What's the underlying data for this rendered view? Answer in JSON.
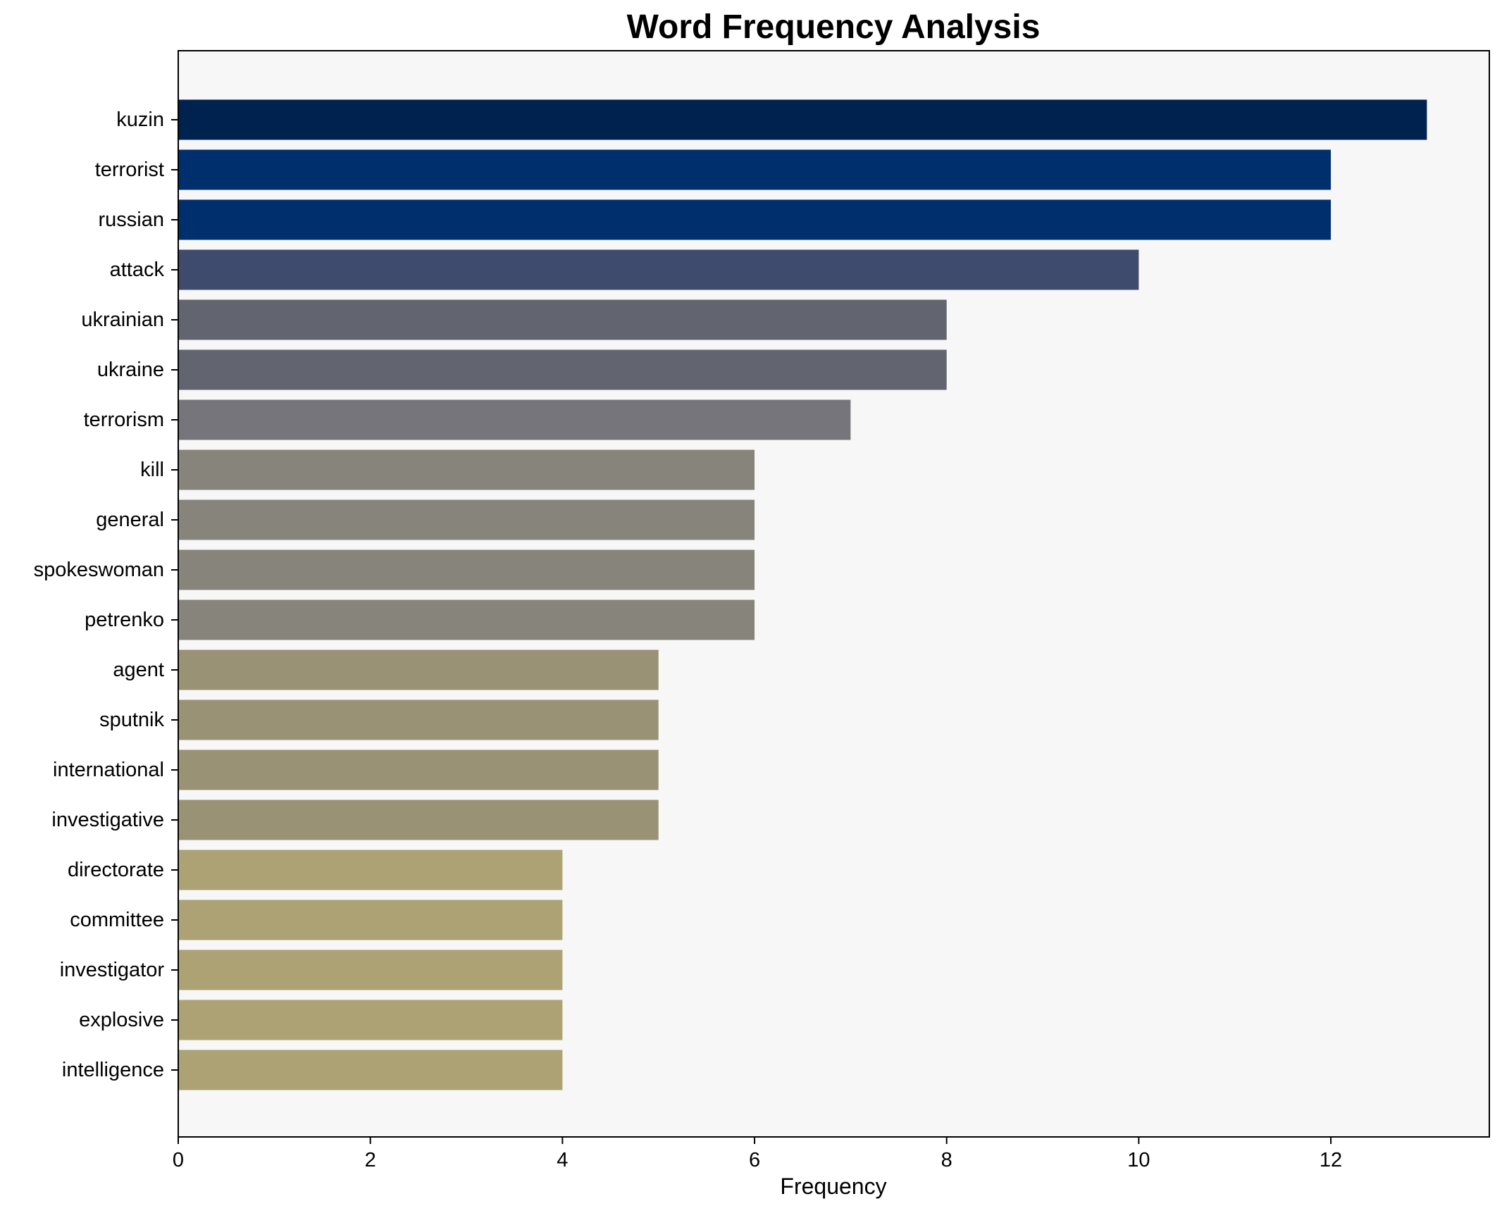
{
  "chart_data": {
    "type": "bar",
    "orientation": "horizontal",
    "title": "Word Frequency Analysis",
    "xlabel": "Frequency",
    "ylabel": "",
    "categories": [
      "kuzin",
      "terrorist",
      "russian",
      "attack",
      "ukrainian",
      "ukraine",
      "terrorism",
      "kill",
      "general",
      "spokeswoman",
      "petrenko",
      "agent",
      "sputnik",
      "international",
      "investigative",
      "directorate",
      "committee",
      "investigator",
      "explosive",
      "intelligence"
    ],
    "values": [
      13,
      12,
      12,
      10,
      8,
      8,
      7,
      6,
      6,
      6,
      6,
      5,
      5,
      5,
      5,
      4,
      4,
      4,
      4,
      4
    ],
    "colors": [
      "#00224e",
      "#002f6e",
      "#002f6e",
      "#3e4b6c",
      "#62646f",
      "#62646f",
      "#75757b",
      "#87847b",
      "#87847b",
      "#87847b",
      "#87847b",
      "#999275",
      "#999275",
      "#999275",
      "#999275",
      "#ada273",
      "#ada273",
      "#ada273",
      "#ada273",
      "#ada273"
    ],
    "xlim": [
      0,
      13.65
    ],
    "xticks": [
      0,
      2,
      4,
      6,
      8,
      10,
      12
    ],
    "grid": false,
    "legend": "none",
    "plot_background": "#f7f7f7"
  }
}
